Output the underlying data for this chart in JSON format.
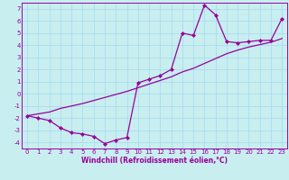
{
  "xlabel": "Windchill (Refroidissement éolien,°C)",
  "bg_color": "#c8eef0",
  "line_color": "#990099",
  "grid_color": "#aaddee",
  "spine_color": "#9900aa",
  "hours": [
    0,
    1,
    2,
    3,
    4,
    5,
    6,
    7,
    8,
    9,
    10,
    11,
    12,
    13,
    14,
    15,
    16,
    17,
    18,
    19,
    20,
    21,
    22,
    23
  ],
  "data_y": [
    -1.8,
    -2.0,
    -2.2,
    -2.8,
    -3.2,
    -3.3,
    -3.5,
    -4.1,
    -3.8,
    -3.6,
    0.9,
    1.2,
    1.5,
    2.0,
    5.0,
    4.8,
    7.3,
    6.5,
    4.3,
    4.2,
    4.3,
    4.4,
    4.4,
    6.2
  ],
  "trend_y": [
    -1.8,
    -1.65,
    -1.5,
    -1.2,
    -1.0,
    -0.8,
    -0.55,
    -0.3,
    -0.05,
    0.2,
    0.5,
    0.8,
    1.1,
    1.4,
    1.8,
    2.1,
    2.5,
    2.9,
    3.3,
    3.6,
    3.85,
    4.05,
    4.25,
    4.55
  ],
  "ylim": [
    -4.5,
    7.5
  ],
  "xlim": [
    -0.5,
    23.5
  ],
  "yticks": [
    -4,
    -3,
    -2,
    -1,
    0,
    1,
    2,
    3,
    4,
    5,
    6,
    7
  ],
  "xticks": [
    0,
    1,
    2,
    3,
    4,
    5,
    6,
    7,
    8,
    9,
    10,
    11,
    12,
    13,
    14,
    15,
    16,
    17,
    18,
    19,
    20,
    21,
    22,
    23
  ],
  "tick_fontsize": 5.0,
  "label_fontsize": 5.5,
  "marker_size": 2.2,
  "line_width": 0.9
}
